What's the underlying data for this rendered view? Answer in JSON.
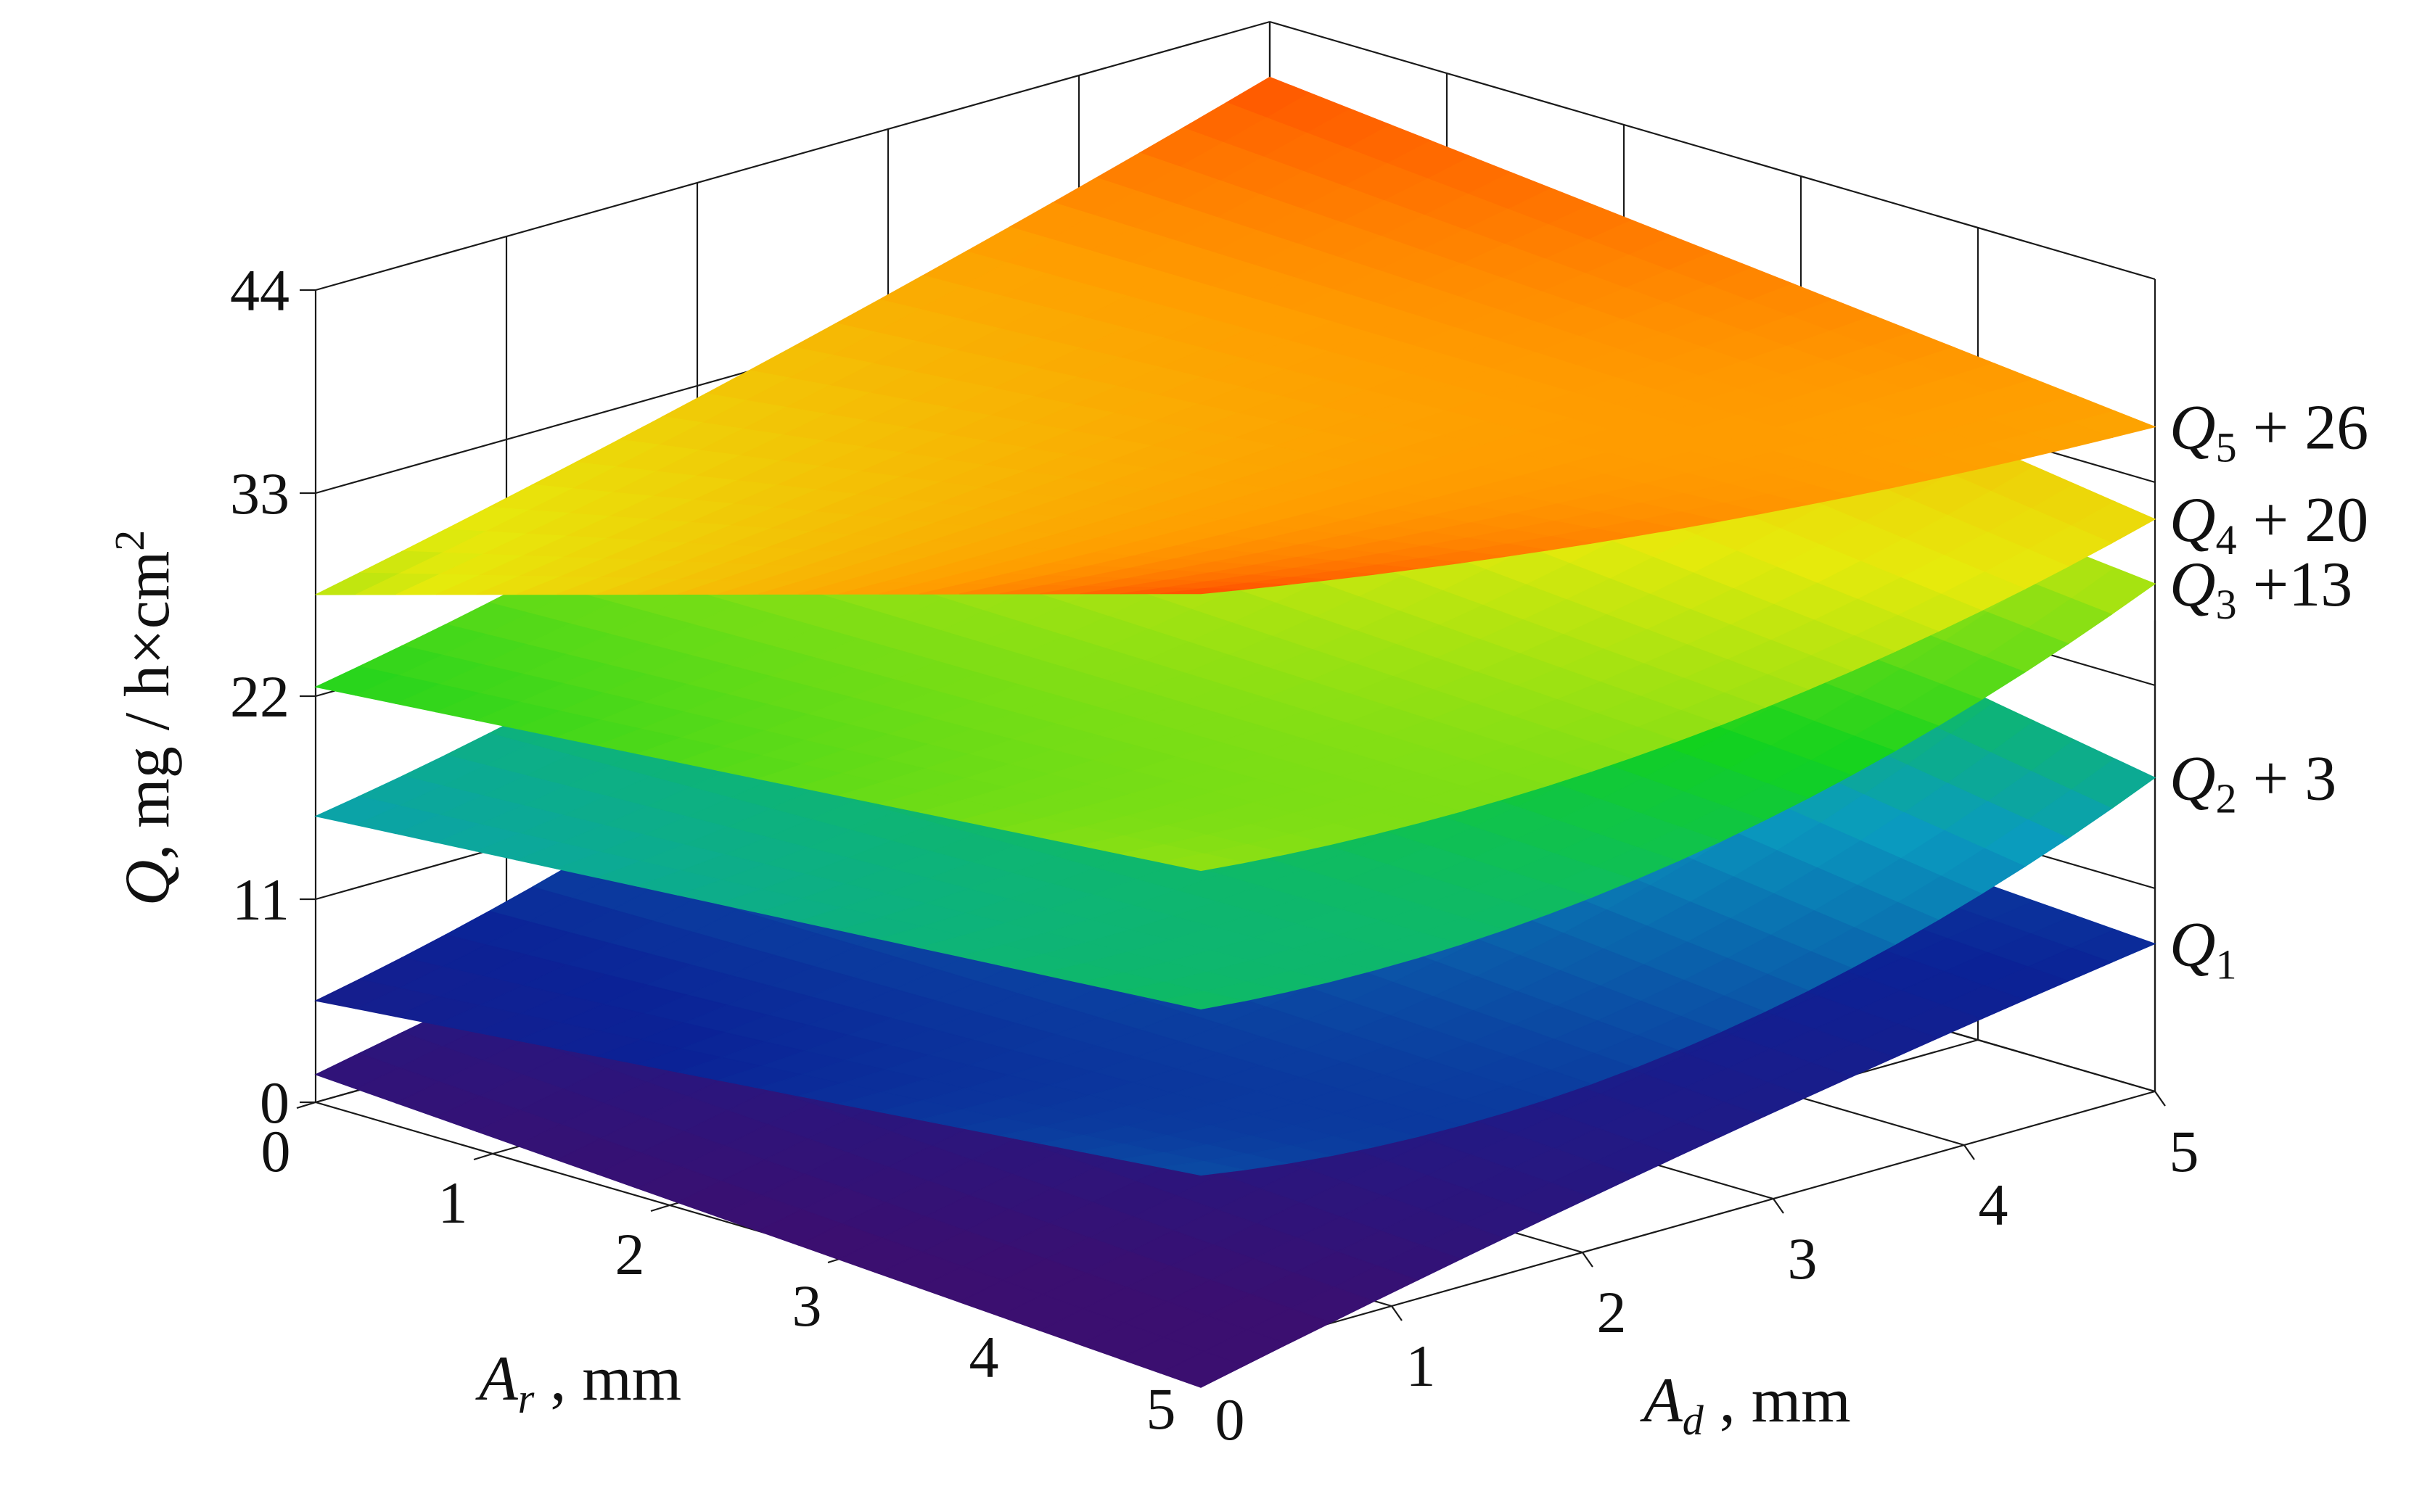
{
  "chart_data": {
    "type": "surface3d",
    "title": "",
    "axes": {
      "x": {
        "var": "A",
        "sub": "r",
        "unit": ", mm",
        "ticks": [
          "0",
          "1",
          "2",
          "3",
          "4",
          "5"
        ],
        "range": [
          0,
          5
        ]
      },
      "y": {
        "var": "A",
        "sub": "d",
        "unit": ", mm",
        "ticks": [
          "0",
          "1",
          "2",
          "3",
          "4",
          "5"
        ],
        "range": [
          0,
          5
        ]
      },
      "z": {
        "var": "Q",
        "unit": ", mg",
        "unit_den": "h×cm",
        "unit_exp": "2",
        "ticks": [
          "0",
          "11",
          "22",
          "33",
          "44"
        ],
        "range": [
          0,
          44
        ]
      }
    },
    "series": [
      {
        "sym": "Q",
        "sub": "1",
        "suffix": "",
        "offset": 0,
        "corners": {
          "r0d0": 1.5,
          "r0d5": 11.0,
          "r5d0": -1.5,
          "r5d5": 8.0
        },
        "curvature": 0.5
      },
      {
        "sym": "Q",
        "sub": "2",
        "suffix": " + 3",
        "offset": 3,
        "corners": {
          "r0d0": 2.5,
          "r0d5": 22.5,
          "r5d0": 7.0,
          "r5d5": 14.0
        },
        "curvature": -4.0
      },
      {
        "sym": "Q",
        "sub": "3",
        "suffix": " +13",
        "offset": 13,
        "corners": {
          "r0d0": 2.5,
          "r0d5": 19.5,
          "r5d0": 6.0,
          "r5d5": 14.5
        },
        "curvature": -3.5
      },
      {
        "sym": "Q",
        "sub": "4",
        "suffix": " + 20",
        "offset": 20,
        "corners": {
          "r0d0": 2.5,
          "r0d5": 18.0,
          "r5d0": 6.5,
          "r5d5": 11.0
        },
        "curvature": -2.5
      },
      {
        "sym": "Q",
        "sub": "5",
        "suffix": " + 26",
        "offset": 26,
        "corners": {
          "r0d0": 1.5,
          "r0d5": 15.0,
          "r5d0": 15.5,
          "r5d5": 10.0
        },
        "curvature": -1.0
      }
    ],
    "colormap": [
      "#3b0f70",
      "#0b2296",
      "#0a9bbf",
      "#12d21e",
      "#e6ea0c",
      "#ff9d00",
      "#ff2200"
    ],
    "grid": true,
    "legend": "inline labels right"
  }
}
